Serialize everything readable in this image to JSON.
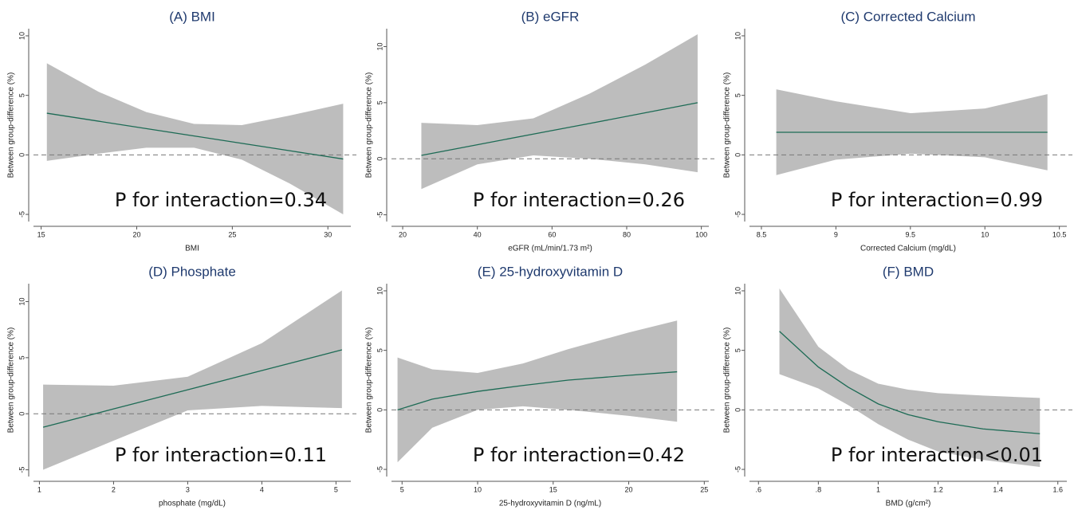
{
  "chart_data": [
    {
      "type": "line-band",
      "title": "(A) BMI",
      "x_label": "BMI",
      "y_label": "Between group-difference (%)",
      "annotation": "P for interaction=0.34",
      "x": [
        15.3,
        18,
        20.5,
        23,
        25.5,
        28,
        30.8
      ],
      "values": [
        3.5,
        2.83,
        2.21,
        1.59,
        0.97,
        0.35,
        -0.35
      ],
      "ci_upper": [
        7.7,
        5.3,
        3.6,
        2.6,
        2.5,
        3.3,
        4.3
      ],
      "ci_lower": [
        -0.5,
        0.1,
        0.6,
        0.6,
        -0.4,
        -2.4,
        -5.0
      ],
      "reference": 0,
      "color": "#1d6b55",
      "band_color": "#bdbdbd",
      "xlim": [
        14.6,
        31.2
      ],
      "ylim": [
        -5.6,
        10.6
      ],
      "xticks": [
        15,
        20,
        25,
        30
      ],
      "yticks": [
        -5,
        0,
        5,
        10
      ]
    },
    {
      "type": "line-band",
      "title": "(B) eGFR",
      "x_label": "eGFR (mL/min/1.73 m²)",
      "y_label": "Between group-difference (%)",
      "annotation": "P for interaction=0.26",
      "x": [
        25,
        40,
        55,
        70,
        85,
        99
      ],
      "values": [
        0.3,
        1.25,
        2.2,
        3.14,
        4.1,
        5.0
      ],
      "ci_upper": [
        3.2,
        3.0,
        3.6,
        5.8,
        8.4,
        11.1
      ],
      "ci_lower": [
        -2.7,
        -0.5,
        0.3,
        0.0,
        -0.5,
        -1.2
      ],
      "reference": 0,
      "color": "#1d6b55",
      "band_color": "#bdbdbd",
      "xlim": [
        17,
        102
      ],
      "ylim": [
        -5.6,
        11.6
      ],
      "xticks": [
        20,
        40,
        60,
        80,
        100
      ],
      "yticks": [
        -5,
        0,
        5,
        10
      ]
    },
    {
      "type": "line-band",
      "title": "(C) Corrected Calcium",
      "x_label": "Corrected Calcium (mg/dL)",
      "y_label": "Between group-difference (%)",
      "annotation": "P for interaction=0.99",
      "x": [
        8.6,
        9.0,
        9.5,
        10.0,
        10.42
      ],
      "values": [
        1.9,
        1.9,
        1.9,
        1.9,
        1.9
      ],
      "ci_upper": [
        5.5,
        4.5,
        3.5,
        3.9,
        5.1
      ],
      "ci_lower": [
        -1.7,
        -0.4,
        0.1,
        -0.2,
        -1.3
      ],
      "reference": 0,
      "color": "#1d6b55",
      "band_color": "#bdbdbd",
      "xlim": [
        8.42,
        10.55
      ],
      "ylim": [
        -5.6,
        10.6
      ],
      "xticks": [
        8.5,
        9,
        9.5,
        10,
        10.5
      ],
      "yticks": [
        -5,
        0,
        5,
        10
      ]
    },
    {
      "type": "line-band",
      "title": "(D) Phosphate",
      "x_label": "phosphate (mg/dL)",
      "y_label": "Between group-difference (%)",
      "annotation": "P for interaction=0.11",
      "x": [
        1.05,
        2,
        3,
        4,
        5.08
      ],
      "values": [
        -1.2,
        0.43,
        2.14,
        3.85,
        5.7
      ],
      "ci_upper": [
        2.6,
        2.5,
        3.3,
        6.3,
        11.0
      ],
      "ci_lower": [
        -5.0,
        -2.4,
        0.3,
        0.7,
        0.5
      ],
      "reference": 0,
      "color": "#1d6b55",
      "band_color": "#bdbdbd",
      "xlim": [
        0.92,
        5.2
      ],
      "ylim": [
        -5.6,
        11.6
      ],
      "xticks": [
        1,
        2,
        3,
        4,
        5
      ],
      "yticks": [
        -5,
        0,
        5,
        10
      ]
    },
    {
      "type": "line-band",
      "title": "(E) 25-hydroxyvitamin D",
      "x_label": "25-hydroxyvitamin D (ng/mL)",
      "y_label": "Between group-difference (%)",
      "annotation": "P for interaction=0.42",
      "x": [
        4.7,
        7,
        10,
        13,
        16,
        20,
        23.2
      ],
      "values": [
        0,
        0.9,
        1.55,
        2.05,
        2.5,
        2.9,
        3.2
      ],
      "ci_upper": [
        4.4,
        3.4,
        3.1,
        3.9,
        5.1,
        6.5,
        7.5
      ],
      "ci_lower": [
        -4.4,
        -1.5,
        0.0,
        0.3,
        0.0,
        -0.5,
        -1.0
      ],
      "reference": 0,
      "color": "#1d6b55",
      "band_color": "#bdbdbd",
      "xlim": [
        4.3,
        25.3
      ],
      "ylim": [
        -5.6,
        10.6
      ],
      "xticks": [
        5,
        10,
        15,
        20,
        25
      ],
      "yticks": [
        -5,
        0,
        5,
        10
      ]
    },
    {
      "type": "line-band",
      "title": "(F) BMD",
      "x_label": "BMD (g/cm²)",
      "y_label": "Between group-difference (%)",
      "annotation": "P for interaction<0.01",
      "x": [
        0.67,
        0.8,
        0.9,
        1.0,
        1.1,
        1.2,
        1.35,
        1.54
      ],
      "values": [
        6.6,
        3.6,
        1.9,
        0.5,
        -0.4,
        -1.0,
        -1.6,
        -2.0
      ],
      "ci_upper": [
        10.2,
        5.3,
        3.4,
        2.2,
        1.7,
        1.4,
        1.2,
        1.0
      ],
      "ci_lower": [
        3.0,
        1.8,
        0.4,
        -1.2,
        -2.5,
        -3.5,
        -4.2,
        -4.8
      ],
      "reference": 0,
      "color": "#1d6b55",
      "band_color": "#bdbdbd",
      "xlim": [
        0.57,
        1.63
      ],
      "ylim": [
        -5.6,
        10.6
      ],
      "xticks": [
        {
          "value": 0.6,
          "label": ".6"
        },
        {
          "value": 0.8,
          "label": ".8"
        },
        1,
        1.2,
        1.4,
        1.6
      ],
      "yticks": [
        -5,
        0,
        5,
        10
      ]
    }
  ]
}
